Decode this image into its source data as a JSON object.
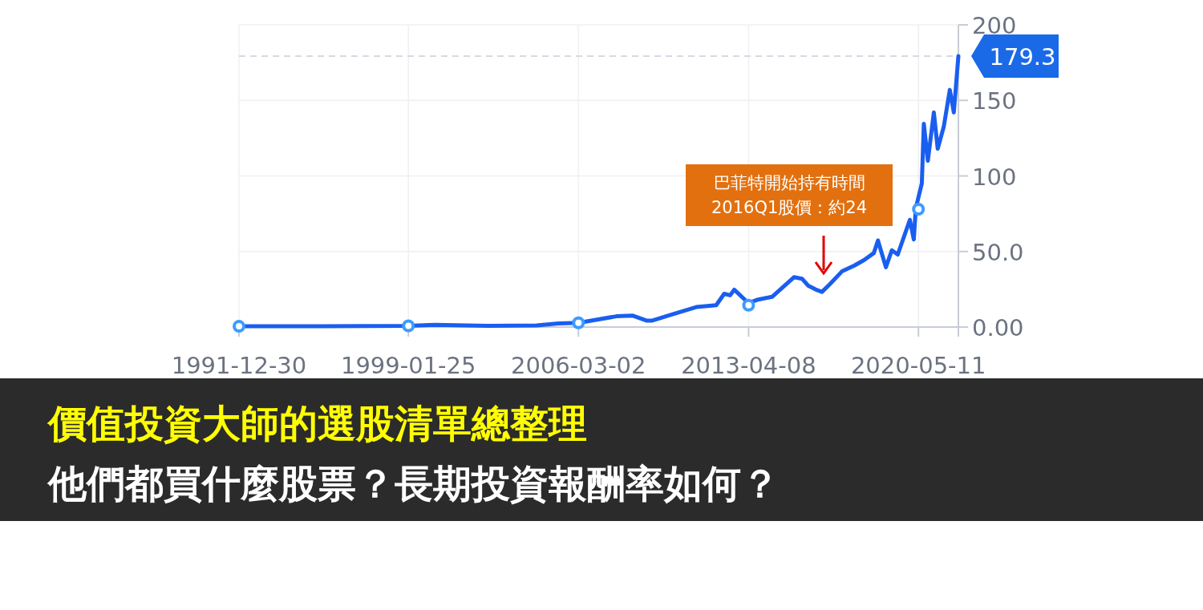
{
  "chart_data": {
    "type": "line",
    "title": "價值投資大師的選股清單總整理",
    "subtitle": "他們都買什麼股票？長期投資報酬率如何？",
    "xlim": [
      "1991-12-30",
      "2022-01-10"
    ],
    "ylim": [
      0,
      200
    ],
    "xticks": [
      {
        "value": "1991-12-30",
        "label": "1991-12-30"
      },
      {
        "value": "1999-01-25",
        "label": "1999-01-25"
      },
      {
        "value": "2006-03-02",
        "label": "2006-03-02"
      },
      {
        "value": "2013-04-08",
        "label": "2013-04-08"
      },
      {
        "value": "2020-05-11",
        "label": "2020-05-11"
      },
      {
        "value": "2022-01-10",
        "label": null
      }
    ],
    "yticks": [
      {
        "value": 0,
        "label": "0.00"
      },
      {
        "value": 50,
        "label": "50.0"
      },
      100,
      150,
      200
    ],
    "grid": true,
    "series": [
      {
        "color": "#1a5ef0",
        "x": [
          "1991-12-30",
          "1995-06",
          "1999-01-25",
          "2000-03",
          "2002-06",
          "2004-06",
          "2005-05",
          "2006-03-02",
          "2007-10",
          "2008-06",
          "2009-01",
          "2009-04",
          "2010-02",
          "2011-02",
          "2011-12",
          "2012-04",
          "2012-07",
          "2012-09",
          "2013-04-08",
          "2013-09",
          "2014-04",
          "2014-08",
          "2015-03",
          "2015-07",
          "2015-10",
          "2016-02",
          "2016-05",
          "2016-09",
          "2017-03",
          "2017-09",
          "2018-02",
          "2018-07",
          "2018-09",
          "2019-01",
          "2019-04",
          "2019-07",
          "2020-01",
          "2020-03",
          "2020-04",
          "2020-07",
          "2020-08",
          "2020-10",
          "2021-01",
          "2021-03",
          "2021-06",
          "2021-09",
          "2021-11",
          "2022-01-10"
        ],
        "values": [
          0.5,
          0.6,
          0.8,
          1.5,
          0.8,
          1,
          2.4,
          2.8,
          7.1,
          7.6,
          4.3,
          4.3,
          8.4,
          13.2,
          14.5,
          22,
          21,
          24.7,
          15.8,
          18.2,
          20,
          24.7,
          33,
          32,
          27.5,
          24.7,
          23.3,
          28.5,
          36.8,
          40.6,
          44.3,
          49,
          57.3,
          39.6,
          50.8,
          48,
          71,
          58,
          78.7,
          95,
          134.5,
          110,
          142,
          118,
          132.7,
          157,
          142,
          179.3
        ]
      },
      {
        "type": "scatter",
        "marker": "circle",
        "color": "#3d9bff",
        "x": [
          "1991-12-30",
          "1999-01-25",
          "2006-03-02",
          "2013-04-08",
          "2020-05-11"
        ],
        "values": [
          0.5,
          0.8,
          2.8,
          14.4,
          78
        ]
      }
    ],
    "ref_lines": [
      {
        "axis": "y",
        "value": 179.3,
        "label": "179.3",
        "line_style": "dashed"
      }
    ],
    "annotations": [
      "巴菲特開始持有時間\n2016Q1股價：約24"
    ]
  }
}
